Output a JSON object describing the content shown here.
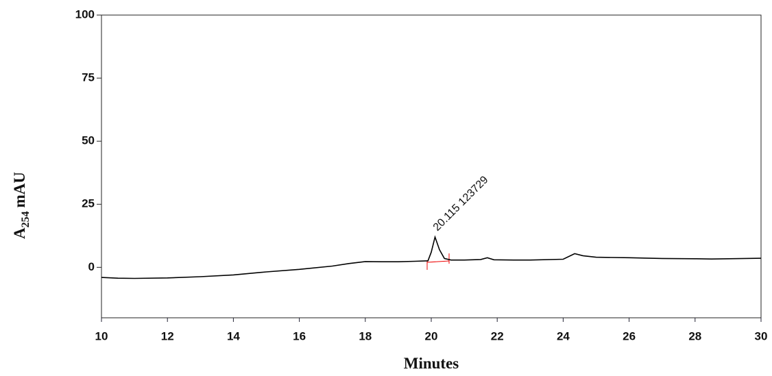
{
  "chart_data": {
    "type": "line",
    "xlabel": "Minutes",
    "ylabel": "A",
    "ylabel_subscript": "254",
    "ylabel_unit": "mAU",
    "annotation": "20.115 123729",
    "xlim": [
      10,
      30
    ],
    "xticks": [
      10,
      12,
      14,
      16,
      18,
      20,
      22,
      24,
      26,
      28,
      30
    ],
    "ylim": [
      -20,
      100
    ],
    "yticks": [
      0,
      25,
      50,
      75,
      100
    ],
    "series": [
      {
        "color": "#000000",
        "x": [
          10,
          10.5,
          11,
          12,
          13,
          14,
          15,
          16,
          17,
          17.5,
          18,
          18.5,
          19,
          19.5,
          19.9,
          20.0,
          20.115,
          20.25,
          20.4,
          20.6,
          21,
          21.5,
          21.7,
          21.9,
          22.5,
          23,
          24,
          24.35,
          24.6,
          25,
          26,
          27,
          28,
          28.5,
          29,
          30
        ],
        "values": [
          -4,
          -4.3,
          -4.4,
          -4.2,
          -3.7,
          -3.0,
          -1.8,
          -0.8,
          0.5,
          1.5,
          2.3,
          2.2,
          2.2,
          2.4,
          2.6,
          6,
          12,
          7,
          3.5,
          2.9,
          2.9,
          3.1,
          3.8,
          3.0,
          2.9,
          2.9,
          3.2,
          5.4,
          4.6,
          4.0,
          3.8,
          3.5,
          3.4,
          3.3,
          3.4,
          3.6
        ]
      }
    ]
  }
}
